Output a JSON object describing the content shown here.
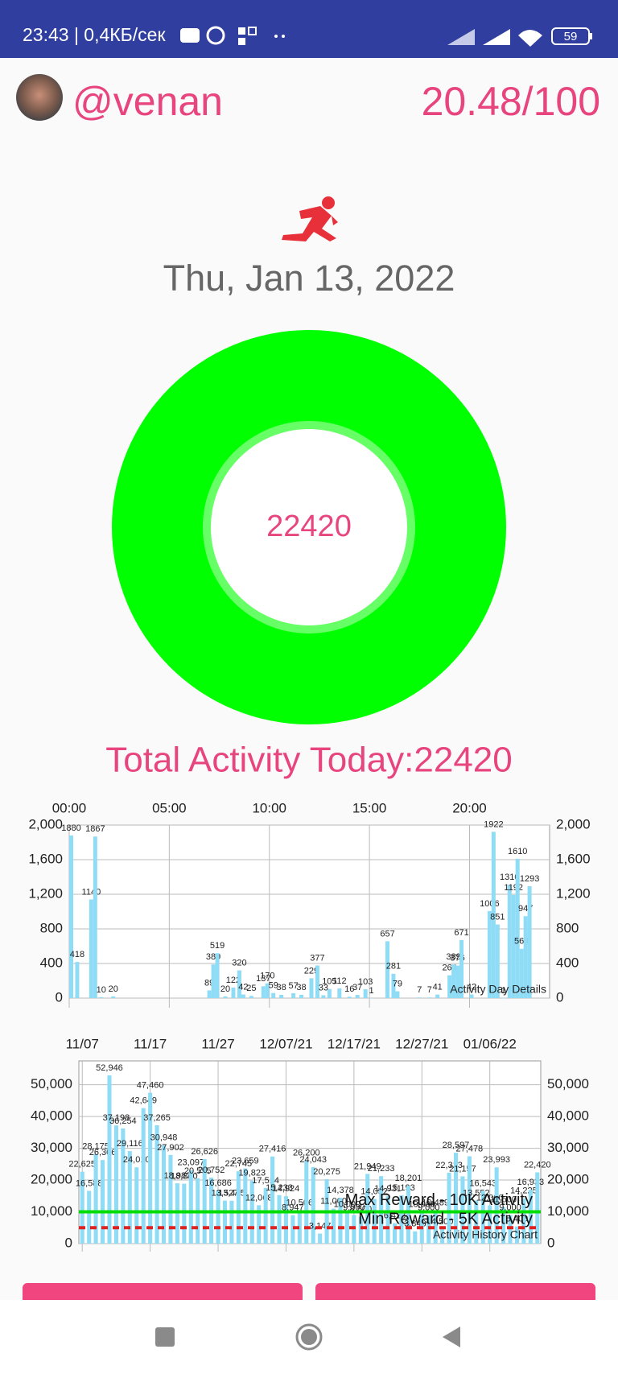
{
  "status_bar": {
    "time": "23:43 | 0,4КБ/сек",
    "battery": "59"
  },
  "header": {
    "username": "@venan",
    "score": "20.48/100"
  },
  "date": "Thu, Jan 13, 2022",
  "ring": {
    "value": "22420"
  },
  "total_label": "Total Activity Today:22420",
  "chart_data": [
    {
      "type": "bar",
      "annotation": "Activity Day Details",
      "color": "#8fdcf6",
      "grid": true,
      "x": [
        0.1,
        0.4,
        1.1,
        1.3,
        1.6,
        2.2,
        7.0,
        7.2,
        7.4,
        7.8,
        8.2,
        8.5,
        8.7,
        9.1,
        9.7,
        9.9,
        10.2,
        10.6,
        11.2,
        11.6,
        12.1,
        12.4,
        12.7,
        13.0,
        13.5,
        14.0,
        14.4,
        14.8,
        15.1,
        15.9,
        16.2,
        16.4,
        17.5,
        18.0,
        18.4,
        19.0,
        19.2,
        19.4,
        19.6,
        20.1,
        21.0,
        21.2,
        21.4,
        21.7,
        22.0,
        22.2,
        22.4,
        22.6,
        22.8,
        23.0
      ],
      "values": [
        1880,
        418,
        1140,
        1867,
        10,
        20,
        89,
        389,
        519,
        20,
        122,
        320,
        42,
        25,
        137,
        170,
        59,
        38,
        57,
        38,
        229,
        377,
        33,
        105,
        112,
        16,
        37,
        103,
        1,
        657,
        281,
        79,
        7,
        7,
        41,
        264,
        389,
        376,
        671,
        42,
        1006,
        1922,
        851,
        1,
        1310,
        1192,
        1610,
        569,
        947,
        1293
      ],
      "xlim": [
        0,
        24
      ],
      "xticks": [
        {
          "value": 0,
          "label": "00:00"
        },
        {
          "value": 5,
          "label": "05:00"
        },
        {
          "value": 10,
          "label": "10:00"
        },
        {
          "value": 15,
          "label": "15:00"
        },
        {
          "value": 20,
          "label": "20:00"
        }
      ],
      "ylim": [
        0,
        2000
      ],
      "yticks": [
        0,
        400,
        800,
        {
          "value": 1200,
          "label": "1,200"
        },
        {
          "value": 1600,
          "label": "1,600"
        },
        {
          "value": 2000,
          "label": "2,000"
        }
      ]
    },
    {
      "type": "bar",
      "annotation": "Activity History Chart",
      "color": "#8fdcf6",
      "grid": true,
      "categories": [
        "11/07",
        null,
        null,
        null,
        null,
        null,
        null,
        null,
        null,
        null,
        "11/17",
        null,
        null,
        null,
        null,
        null,
        null,
        null,
        null,
        null,
        "11/27",
        null,
        null,
        null,
        null,
        null,
        null,
        null,
        null,
        null,
        "12/07/21",
        null,
        null,
        null,
        null,
        null,
        null,
        null,
        null,
        null,
        "12/17/21",
        null,
        null,
        null,
        null,
        null,
        null,
        null,
        null,
        null,
        "12/27/21",
        null,
        null,
        null,
        null,
        null,
        null,
        null,
        null,
        null,
        "01/06/22",
        null,
        null,
        null,
        null,
        null,
        null,
        null
      ],
      "values": [
        22625,
        16588,
        28175,
        26306,
        52946,
        37198,
        36254,
        29116,
        24010,
        42649,
        47460,
        37265,
        30948,
        27902,
        18983,
        18840,
        23097,
        20555,
        26626,
        20752,
        16686,
        13527,
        13475,
        22745,
        23659,
        19823,
        12068,
        17514,
        27416,
        15233,
        14924,
        8947,
        10506,
        26200,
        24043,
        3147,
        20275,
        11000,
        14378,
        10000,
        9000,
        8500,
        21949,
        14052,
        21233,
        14931,
        6428,
        15193,
        18201,
        3848,
        10000,
        9000,
        10489,
        4500,
        22313,
        28597,
        21157,
        27478,
        13552,
        16543,
        12000,
        23993,
        11500,
        9000,
        5400,
        14225,
        16933,
        22420
      ],
      "value_labels": [
        "22,625",
        "16,588",
        "28,175",
        "26,306",
        "52,946",
        "37,198",
        "36,254",
        "29,116",
        "24,010",
        "42,649",
        "47,460",
        "37,265",
        "30,948",
        "27,902",
        "18,983",
        "18,840",
        "23,097",
        "20,555",
        "26,626",
        "20,752",
        "16,686",
        "13,527",
        "13,475",
        "22,745",
        "23,659",
        "19,823",
        "12,068",
        "17,514",
        "27,416",
        "15,233",
        "14,924",
        "8,947",
        "10,506",
        "26,200",
        "24,043",
        "3,147",
        "20,275",
        "11,000",
        "14,378",
        "10,000",
        "9,000",
        "8,500",
        "21,949",
        "14,052",
        "21,233",
        "14,931",
        "6,428",
        "15,193",
        "18,201",
        "3,848",
        "10,000",
        "9,000",
        "10,489",
        "4,500",
        "22,313",
        "28,597",
        "21,157",
        "27,478",
        "13,552",
        "16,543",
        "12,000",
        "23,993",
        "11,500",
        "9,000",
        "5,400",
        "14,225",
        "16,933",
        "22,420"
      ],
      "ylim": [
        0,
        57500
      ],
      "yticks": [
        0,
        {
          "value": 10000,
          "label": "10,000"
        },
        {
          "value": 20000,
          "label": "20,000"
        },
        {
          "value": 30000,
          "label": "30,000"
        },
        {
          "value": 40000,
          "label": "40,000"
        },
        {
          "value": 50000,
          "label": "50,000"
        }
      ],
      "lines": [
        {
          "name": "Max Reward - 10K Activity",
          "value": 10000,
          "color": "#00dd00",
          "style": "solid"
        },
        {
          "name": "Min Reward - 5K Activity",
          "value": 5000,
          "color": "#dd2222",
          "style": "dashed"
        }
      ]
    }
  ]
}
